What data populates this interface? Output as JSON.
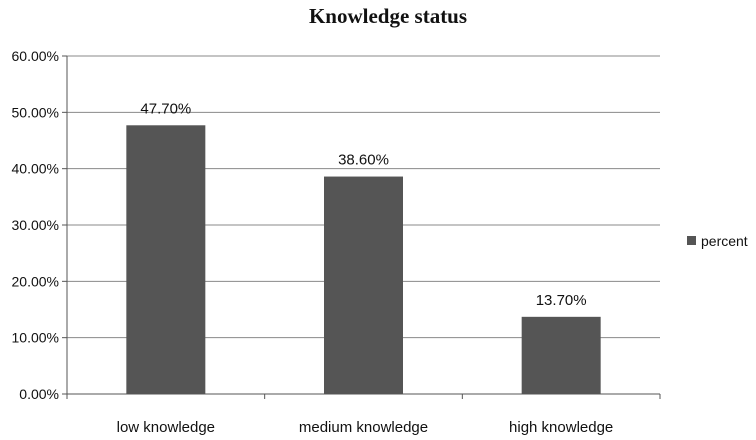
{
  "chart_data": {
    "type": "bar",
    "title": "Knowledge status",
    "categories": [
      "low knowledge",
      "medium knowledge",
      "high knowledge"
    ],
    "series": [
      {
        "name": "percent",
        "values": [
          47.7,
          38.6,
          13.7
        ],
        "data_labels": [
          "47.70%",
          "38.60%",
          "13.70%"
        ],
        "color": "#555555"
      }
    ],
    "y_ticks": [
      0,
      10,
      20,
      30,
      40,
      50,
      60
    ],
    "y_tick_labels": [
      "0.00%",
      "10.00%",
      "20.00%",
      "30.00%",
      "40.00%",
      "50.00%",
      "60.00%"
    ],
    "ylim": [
      0,
      60
    ],
    "xlabel": "",
    "ylabel": "",
    "grid": true,
    "legend": "right"
  }
}
